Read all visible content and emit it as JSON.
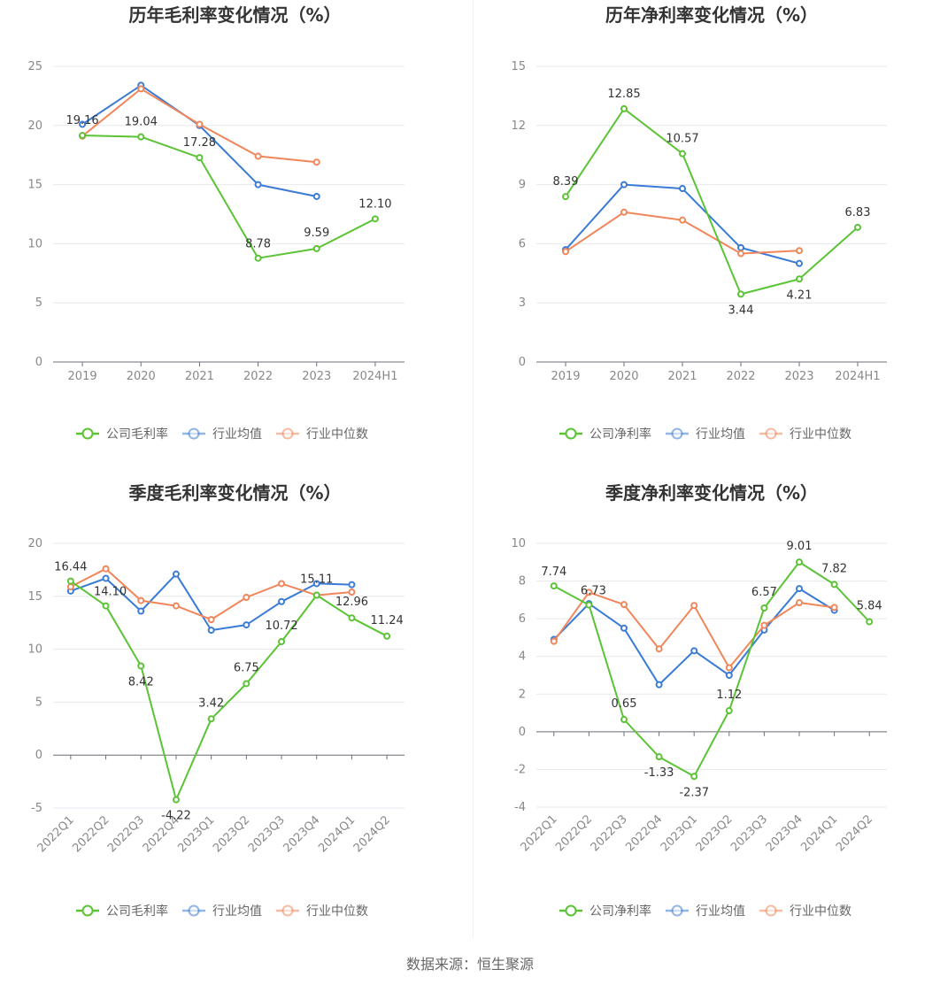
{
  "source_label": "数据来源：恒生聚源",
  "chart_data": [
    {
      "id": "annual-gross",
      "type": "line",
      "title": "历年毛利率变化情况（%）",
      "categories": [
        "2019",
        "2020",
        "2021",
        "2022",
        "2023",
        "2024H1"
      ],
      "ylim": [
        0,
        25
      ],
      "yticks": [
        0,
        5,
        10,
        15,
        20,
        25
      ],
      "rotate_labels": false,
      "series": [
        {
          "name": "公司毛利率",
          "color": "#5bc335",
          "values": [
            19.16,
            19.04,
            17.28,
            8.78,
            9.59,
            12.1
          ],
          "labels": [
            "19.16",
            "19.04",
            "17.28",
            "8.78",
            "9.59",
            "12.10"
          ]
        },
        {
          "name": "行业均值",
          "color": "#3a7bd5",
          "values": [
            20.1,
            23.4,
            20.0,
            15.0,
            14.0,
            null
          ]
        },
        {
          "name": "行业中位数",
          "color": "#f0865a",
          "values": [
            19.1,
            23.1,
            20.1,
            17.4,
            16.9,
            null
          ]
        }
      ]
    },
    {
      "id": "annual-net",
      "type": "line",
      "title": "历年净利率变化情况（%）",
      "categories": [
        "2019",
        "2020",
        "2021",
        "2022",
        "2023",
        "2024H1"
      ],
      "ylim": [
        0,
        15
      ],
      "yticks": [
        0,
        3,
        6,
        9,
        12,
        15
      ],
      "rotate_labels": false,
      "series": [
        {
          "name": "公司净利率",
          "color": "#5bc335",
          "values": [
            8.39,
            12.85,
            10.57,
            3.44,
            4.21,
            6.83
          ],
          "labels": [
            "8.39",
            "12.85",
            "10.57",
            "3.44",
            "4.21",
            "6.83"
          ]
        },
        {
          "name": "行业均值",
          "color": "#3a7bd5",
          "values": [
            5.7,
            9.0,
            8.8,
            5.8,
            5.0,
            null
          ]
        },
        {
          "name": "行业中位数",
          "color": "#f0865a",
          "values": [
            5.6,
            7.6,
            7.2,
            5.5,
            5.65,
            null
          ]
        }
      ]
    },
    {
      "id": "quarterly-gross",
      "type": "line",
      "title": "季度毛利率变化情况（%）",
      "categories": [
        "2022Q1",
        "2022Q2",
        "2022Q3",
        "2022Q4",
        "2023Q1",
        "2023Q2",
        "2023Q3",
        "2023Q4",
        "2024Q1",
        "2024Q2"
      ],
      "ylim": [
        -5,
        20
      ],
      "yticks": [
        -5,
        0,
        5,
        10,
        15,
        20
      ],
      "rotate_labels": true,
      "series": [
        {
          "name": "公司毛利率",
          "color": "#5bc335",
          "values": [
            16.44,
            14.1,
            8.42,
            -4.22,
            3.42,
            6.75,
            10.72,
            15.11,
            12.96,
            11.24
          ],
          "labels": [
            "16.44",
            "14.10",
            "8.42",
            "-4.22",
            "3.42",
            "6.75",
            "10.72",
            "15.11",
            "12.96",
            "11.24"
          ]
        },
        {
          "name": "行业均值",
          "color": "#3a7bd5",
          "values": [
            15.5,
            16.7,
            13.6,
            17.1,
            11.8,
            12.3,
            14.5,
            16.2,
            16.1,
            null
          ]
        },
        {
          "name": "行业中位数",
          "color": "#f0865a",
          "values": [
            15.9,
            17.6,
            14.6,
            14.1,
            12.8,
            14.9,
            16.2,
            15.1,
            15.4,
            null
          ]
        }
      ]
    },
    {
      "id": "quarterly-net",
      "type": "line",
      "title": "季度净利率变化情况（%）",
      "categories": [
        "2022Q1",
        "2022Q2",
        "2022Q3",
        "2022Q4",
        "2023Q1",
        "2023Q2",
        "2023Q3",
        "2023Q4",
        "2024Q1",
        "2024Q2"
      ],
      "ylim": [
        -4,
        10
      ],
      "yticks": [
        -4,
        -2,
        0,
        2,
        4,
        6,
        8,
        10
      ],
      "rotate_labels": true,
      "series": [
        {
          "name": "公司净利率",
          "color": "#5bc335",
          "values": [
            7.74,
            6.73,
            0.65,
            -1.33,
            -2.37,
            1.12,
            6.57,
            9.01,
            7.82,
            5.84
          ],
          "labels": [
            "7.74",
            "6.73",
            "0.65",
            "-1.33",
            "-2.37",
            "1.12",
            "6.57",
            "9.01",
            "7.82",
            "5.84"
          ]
        },
        {
          "name": "行业均值",
          "color": "#3a7bd5",
          "values": [
            4.9,
            6.8,
            5.5,
            2.5,
            4.3,
            3.0,
            5.4,
            7.6,
            6.45,
            null
          ]
        },
        {
          "name": "行业中位数",
          "color": "#f0865a",
          "values": [
            4.8,
            7.4,
            6.75,
            4.4,
            6.7,
            3.4,
            5.65,
            6.85,
            6.6,
            null
          ]
        }
      ]
    }
  ]
}
